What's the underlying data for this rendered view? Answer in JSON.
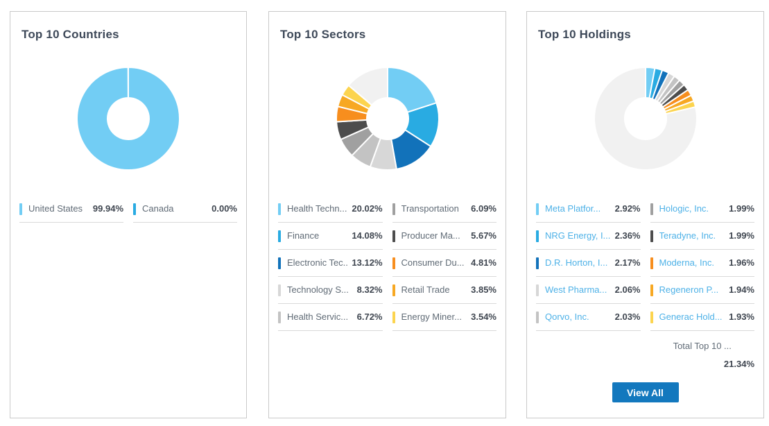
{
  "cards": {
    "countries": {
      "title": "Top 10 Countries",
      "legend": [
        {
          "label": "United States",
          "value": "99.94%"
        },
        {
          "label": "Canada",
          "value": "0.00%"
        }
      ]
    },
    "sectors": {
      "title": "Top 10 Sectors",
      "legend": [
        {
          "label": "Health Techn...",
          "value": "20.02%"
        },
        {
          "label": "Finance",
          "value": "14.08%"
        },
        {
          "label": "Electronic Tec...",
          "value": "13.12%"
        },
        {
          "label": "Technology S...",
          "value": "8.32%"
        },
        {
          "label": "Health Servic...",
          "value": "6.72%"
        },
        {
          "label": "Transportation",
          "value": "6.09%"
        },
        {
          "label": "Producer Ma...",
          "value": "5.67%"
        },
        {
          "label": "Consumer Du...",
          "value": "4.81%"
        },
        {
          "label": "Retail Trade",
          "value": "3.85%"
        },
        {
          "label": "Energy Miner...",
          "value": "3.54%"
        }
      ]
    },
    "holdings": {
      "title": "Top 10 Holdings",
      "legend": [
        {
          "label": "Meta Platfor...",
          "value": "2.92%"
        },
        {
          "label": "NRG Energy, I...",
          "value": "2.36%"
        },
        {
          "label": "D.R. Horton, I...",
          "value": "2.17%"
        },
        {
          "label": "West Pharma...",
          "value": "2.06%"
        },
        {
          "label": "Qorvo, Inc.",
          "value": "2.03%"
        },
        {
          "label": "Hologic, Inc.",
          "value": "1.99%"
        },
        {
          "label": "Teradyne, Inc.",
          "value": "1.99%"
        },
        {
          "label": "Moderna, Inc.",
          "value": "1.96%"
        },
        {
          "label": "Regeneron P...",
          "value": "1.94%"
        },
        {
          "label": "Generac Hold...",
          "value": "1.93%"
        }
      ],
      "total_label": "Total Top 10 ...",
      "total_value": "21.34%",
      "view_all_label": "View All"
    }
  },
  "colors": {
    "accent_link": "#4db1e7",
    "button_blue": "#1378be",
    "title_text": "#3e4959",
    "label_text": "#606b76",
    "value_text": "#3f4650",
    "remainder_gray": "#f1f1f1"
  },
  "chart_data": [
    {
      "type": "donut",
      "title": "Top 10 Countries",
      "labels": [
        "United States",
        "Canada"
      ],
      "values": [
        99.94,
        0.0
      ],
      "colors": [
        "#72cdf4",
        "#29abe2"
      ],
      "other": {
        "value": 0.06,
        "color": "#f1f1f1"
      },
      "start_angle_deg": -90,
      "direction": "clockwise",
      "legend_position": "bottom"
    },
    {
      "type": "donut",
      "title": "Top 10 Sectors",
      "labels": [
        "Health Techn...",
        "Finance",
        "Electronic Tec...",
        "Technology S...",
        "Health Servic...",
        "Transportation",
        "Producer Ma...",
        "Consumer Du...",
        "Retail Trade",
        "Energy Miner..."
      ],
      "values": [
        20.02,
        14.08,
        13.12,
        8.32,
        6.72,
        6.09,
        5.67,
        4.81,
        3.85,
        3.54
      ],
      "colors": [
        "#72cdf4",
        "#29abe2",
        "#1272ba",
        "#d7d7d7",
        "#c3c3c3",
        "#a0a0a0",
        "#4d4d4d",
        "#f78e1e",
        "#f7a823",
        "#fcd44f"
      ],
      "other": {
        "value": 13.78,
        "color": "#f1f1f1"
      },
      "start_angle_deg": -90,
      "direction": "clockwise",
      "legend_position": "bottom"
    },
    {
      "type": "donut",
      "title": "Top 10 Holdings",
      "labels": [
        "Meta Platfor...",
        "NRG Energy, I...",
        "D.R. Horton, I...",
        "West Pharma...",
        "Qorvo, Inc.",
        "Hologic, Inc.",
        "Teradyne, Inc.",
        "Moderna, Inc.",
        "Regeneron P...",
        "Generac Hold..."
      ],
      "values": [
        2.92,
        2.36,
        2.17,
        2.06,
        2.03,
        1.99,
        1.99,
        1.96,
        1.94,
        1.93
      ],
      "colors": [
        "#72cdf4",
        "#29abe2",
        "#1272ba",
        "#d7d7d7",
        "#c3c3c3",
        "#a0a0a0",
        "#4d4d4d",
        "#f78e1e",
        "#f7a823",
        "#fcd44f"
      ],
      "other": {
        "value": 78.66,
        "color": "#f1f1f1"
      },
      "total": 21.34,
      "start_angle_deg": -90,
      "direction": "clockwise",
      "legend_position": "bottom"
    }
  ]
}
